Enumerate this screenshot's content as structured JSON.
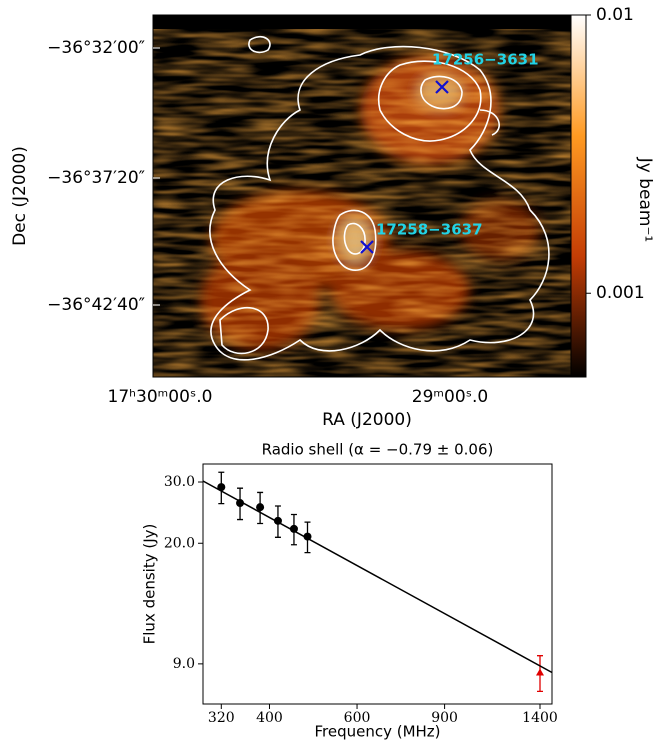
{
  "chart_data": [
    {
      "type": "image",
      "xlabel": "RA (J2000)",
      "ylabel": "Dec (J2000)",
      "x_tick_labels": [
        "17ʰ30ᵐ00ˢ.0",
        "29ᵐ00ˢ.0"
      ],
      "y_tick_labels": [
        "−36°32′00″",
        "−36°37′20″",
        "−36°42′40″"
      ],
      "colorbar": {
        "label": "Jy beam⁻¹",
        "lim": [
          0.0005,
          0.01
        ],
        "ticks": [
          0.01,
          0.001
        ],
        "log": true,
        "colors": [
          "#000000",
          "#c43d05",
          "#ff9a22",
          "#ffffff"
        ]
      },
      "annotations": [
        "17256−3631",
        "17258−3637"
      ],
      "annotation_color": "#22d3e6",
      "marker_color": "#1010d0",
      "contour_color": "#ffffff"
    },
    {
      "type": "scatter",
      "title": "Radio shell (α = −0.79 ± 0.06)",
      "xlabel": "Frequency (MHz)",
      "ylabel": "Flux density (Jy)",
      "xlog": true,
      "ylog": true,
      "xlim": [
        294,
        1480
      ],
      "ylim": [
        6.9,
        33.8
      ],
      "xticks": [
        320,
        400,
        600,
        900,
        1400
      ],
      "yticks": [
        {
          "value": 9,
          "label": "9.0"
        },
        {
          "value": 20,
          "label": "20.0"
        },
        {
          "value": 30,
          "label": "30.0"
        }
      ],
      "series": [
        {
          "color": "#000000",
          "marker": "circle",
          "x": [
            320,
            349,
            383,
            416,
            448,
            477
          ],
          "values": [
            29.0,
            26.1,
            25.4,
            23.2,
            22.0,
            20.9
          ],
          "errors": [
            3.0,
            2.7,
            2.6,
            2.4,
            2.2,
            2.1
          ]
        },
        {
          "color": "#e00000",
          "marker": "triangle",
          "x": [
            1400
          ],
          "values": [
            8.5
          ],
          "errors": [
            1.0
          ]
        },
        {
          "color": "#000000",
          "marker": "line",
          "x": [
            294,
            1480
          ],
          "values": [
            30.2,
            8.5
          ]
        }
      ]
    }
  ]
}
